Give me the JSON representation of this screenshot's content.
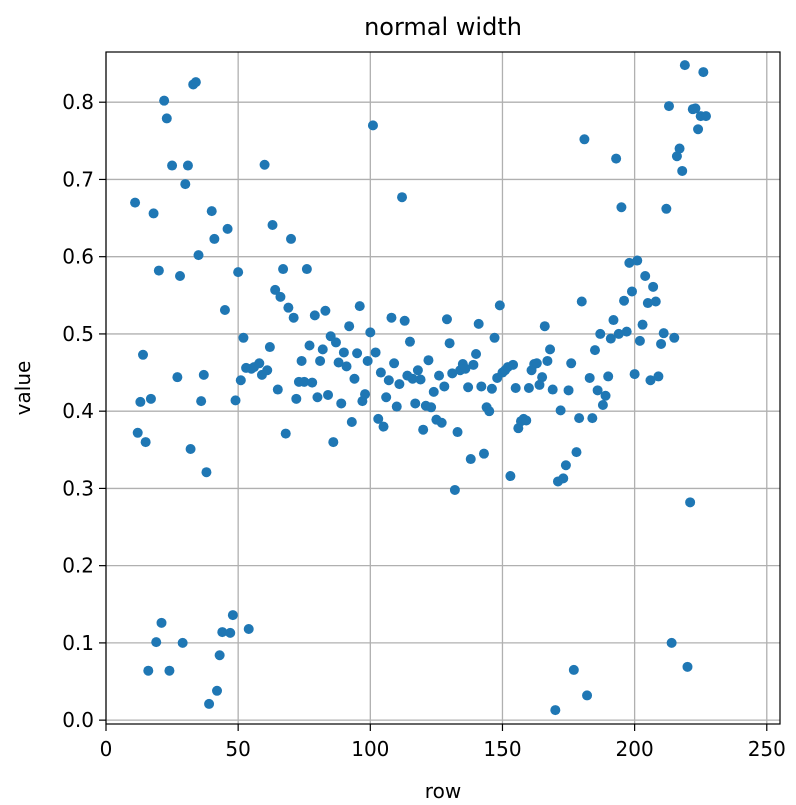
{
  "chart_data": {
    "type": "scatter",
    "title": "normal width",
    "xlabel": "row",
    "ylabel": "value",
    "xlim": [
      0,
      255
    ],
    "ylim": [
      -0.005,
      0.865
    ],
    "xticks": [
      0,
      50,
      100,
      150,
      200,
      250
    ],
    "xtick_labels": [
      "0",
      "50",
      "100",
      "150",
      "200",
      "250"
    ],
    "yticks": [
      0.0,
      0.1,
      0.2,
      0.3,
      0.4,
      0.5,
      0.6,
      0.7,
      0.8
    ],
    "ytick_labels": [
      "0.0",
      "0.1",
      "0.2",
      "0.3",
      "0.4",
      "0.5",
      "0.6",
      "0.7",
      "0.8"
    ],
    "grid": true,
    "colors": {
      "marker": "#1f77b4",
      "grid": "#b0b0b0",
      "axis": "#000000"
    },
    "series": [
      {
        "points": [
          [
            11,
            0.67
          ],
          [
            12,
            0.372
          ],
          [
            13,
            0.412
          ],
          [
            14,
            0.473
          ],
          [
            15,
            0.36
          ],
          [
            16,
            0.064
          ],
          [
            17,
            0.416
          ],
          [
            18,
            0.656
          ],
          [
            19,
            0.101
          ],
          [
            20,
            0.582
          ],
          [
            21,
            0.126
          ],
          [
            22,
            0.802
          ],
          [
            23,
            0.779
          ],
          [
            24,
            0.064
          ],
          [
            25,
            0.718
          ],
          [
            27,
            0.444
          ],
          [
            28,
            0.575
          ],
          [
            29,
            0.1
          ],
          [
            30,
            0.694
          ],
          [
            31,
            0.718
          ],
          [
            32,
            0.351
          ],
          [
            33,
            0.823
          ],
          [
            34,
            0.826
          ],
          [
            35,
            0.602
          ],
          [
            36,
            0.413
          ],
          [
            37,
            0.447
          ],
          [
            38,
            0.321
          ],
          [
            39,
            0.021
          ],
          [
            40,
            0.659
          ],
          [
            41,
            0.623
          ],
          [
            42,
            0.038
          ],
          [
            43,
            0.084
          ],
          [
            44,
            0.114
          ],
          [
            45,
            0.531
          ],
          [
            46,
            0.636
          ],
          [
            47,
            0.113
          ],
          [
            48,
            0.136
          ],
          [
            49,
            0.414
          ],
          [
            50,
            0.58
          ],
          [
            51,
            0.44
          ],
          [
            52,
            0.495
          ],
          [
            53,
            0.456
          ],
          [
            54,
            0.118
          ],
          [
            55,
            0.455
          ],
          [
            56,
            0.457
          ],
          [
            58,
            0.462
          ],
          [
            59,
            0.447
          ],
          [
            60,
            0.719
          ],
          [
            61,
            0.453
          ],
          [
            62,
            0.483
          ],
          [
            63,
            0.641
          ],
          [
            64,
            0.557
          ],
          [
            65,
            0.428
          ],
          [
            66,
            0.548
          ],
          [
            67,
            0.584
          ],
          [
            68,
            0.371
          ],
          [
            69,
            0.534
          ],
          [
            70,
            0.623
          ],
          [
            71,
            0.521
          ],
          [
            72,
            0.416
          ],
          [
            73,
            0.438
          ],
          [
            74,
            0.465
          ],
          [
            75,
            0.438
          ],
          [
            76,
            0.584
          ],
          [
            77,
            0.485
          ],
          [
            78,
            0.437
          ],
          [
            79,
            0.524
          ],
          [
            80,
            0.418
          ],
          [
            81,
            0.465
          ],
          [
            82,
            0.48
          ],
          [
            83,
            0.53
          ],
          [
            84,
            0.421
          ],
          [
            85,
            0.497
          ],
          [
            86,
            0.36
          ],
          [
            87,
            0.489
          ],
          [
            88,
            0.463
          ],
          [
            89,
            0.41
          ],
          [
            90,
            0.476
          ],
          [
            91,
            0.458
          ],
          [
            92,
            0.51
          ],
          [
            93,
            0.386
          ],
          [
            94,
            0.442
          ],
          [
            95,
            0.475
          ],
          [
            96,
            0.536
          ],
          [
            97,
            0.413
          ],
          [
            98,
            0.422
          ],
          [
            99,
            0.465
          ],
          [
            100,
            0.502
          ],
          [
            101,
            0.77
          ],
          [
            102,
            0.476
          ],
          [
            103,
            0.39
          ],
          [
            104,
            0.45
          ],
          [
            105,
            0.38
          ],
          [
            106,
            0.418
          ],
          [
            107,
            0.44
          ],
          [
            108,
            0.521
          ],
          [
            109,
            0.462
          ],
          [
            110,
            0.406
          ],
          [
            111,
            0.435
          ],
          [
            112,
            0.677
          ],
          [
            113,
            0.517
          ],
          [
            114,
            0.446
          ],
          [
            115,
            0.49
          ],
          [
            116,
            0.442
          ],
          [
            117,
            0.41
          ],
          [
            118,
            0.453
          ],
          [
            119,
            0.441
          ],
          [
            120,
            0.376
          ],
          [
            121,
            0.407
          ],
          [
            122,
            0.466
          ],
          [
            123,
            0.405
          ],
          [
            124,
            0.425
          ],
          [
            125,
            0.389
          ],
          [
            126,
            0.446
          ],
          [
            127,
            0.385
          ],
          [
            128,
            0.432
          ],
          [
            129,
            0.519
          ],
          [
            130,
            0.488
          ],
          [
            131,
            0.449
          ],
          [
            132,
            0.298
          ],
          [
            133,
            0.373
          ],
          [
            134,
            0.453
          ],
          [
            135,
            0.461
          ],
          [
            136,
            0.455
          ],
          [
            137,
            0.431
          ],
          [
            138,
            0.338
          ],
          [
            139,
            0.46
          ],
          [
            140,
            0.474
          ],
          [
            141,
            0.513
          ],
          [
            142,
            0.432
          ],
          [
            143,
            0.345
          ],
          [
            144,
            0.405
          ],
          [
            145,
            0.4
          ],
          [
            146,
            0.429
          ],
          [
            147,
            0.495
          ],
          [
            148,
            0.443
          ],
          [
            149,
            0.537
          ],
          [
            150,
            0.45
          ],
          [
            151,
            0.453
          ],
          [
            152,
            0.457
          ],
          [
            153,
            0.316
          ],
          [
            154,
            0.46
          ],
          [
            155,
            0.43
          ],
          [
            156,
            0.378
          ],
          [
            157,
            0.387
          ],
          [
            158,
            0.39
          ],
          [
            159,
            0.388
          ],
          [
            160,
            0.43
          ],
          [
            161,
            0.453
          ],
          [
            162,
            0.461
          ],
          [
            163,
            0.462
          ],
          [
            164,
            0.434
          ],
          [
            165,
            0.444
          ],
          [
            166,
            0.51
          ],
          [
            167,
            0.465
          ],
          [
            168,
            0.48
          ],
          [
            169,
            0.428
          ],
          [
            170,
            0.013
          ],
          [
            171,
            0.309
          ],
          [
            172,
            0.401
          ],
          [
            173,
            0.313
          ],
          [
            174,
            0.33
          ],
          [
            175,
            0.427
          ],
          [
            176,
            0.462
          ],
          [
            177,
            0.065
          ],
          [
            178,
            0.347
          ],
          [
            179,
            0.391
          ],
          [
            180,
            0.542
          ],
          [
            181,
            0.752
          ],
          [
            182,
            0.032
          ],
          [
            183,
            0.443
          ],
          [
            184,
            0.391
          ],
          [
            185,
            0.479
          ],
          [
            186,
            0.427
          ],
          [
            187,
            0.5
          ],
          [
            188,
            0.408
          ],
          [
            189,
            0.42
          ],
          [
            190,
            0.445
          ],
          [
            191,
            0.494
          ],
          [
            192,
            0.518
          ],
          [
            193,
            0.727
          ],
          [
            194,
            0.5
          ],
          [
            195,
            0.664
          ],
          [
            196,
            0.543
          ],
          [
            197,
            0.503
          ],
          [
            198,
            0.592
          ],
          [
            199,
            0.555
          ],
          [
            200,
            0.448
          ],
          [
            201,
            0.595
          ],
          [
            202,
            0.491
          ],
          [
            203,
            0.512
          ],
          [
            204,
            0.575
          ],
          [
            205,
            0.54
          ],
          [
            206,
            0.44
          ],
          [
            207,
            0.561
          ],
          [
            208,
            0.542
          ],
          [
            209,
            0.445
          ],
          [
            210,
            0.487
          ],
          [
            211,
            0.501
          ],
          [
            212,
            0.662
          ],
          [
            213,
            0.795
          ],
          [
            214,
            0.1
          ],
          [
            215,
            0.495
          ],
          [
            216,
            0.73
          ],
          [
            217,
            0.74
          ],
          [
            218,
            0.711
          ],
          [
            219,
            0.848
          ],
          [
            220,
            0.069
          ],
          [
            221,
            0.282
          ],
          [
            222,
            0.791
          ],
          [
            223,
            0.792
          ],
          [
            224,
            0.765
          ],
          [
            225,
            0.782
          ],
          [
            226,
            0.839
          ],
          [
            227,
            0.782
          ]
        ]
      }
    ]
  }
}
